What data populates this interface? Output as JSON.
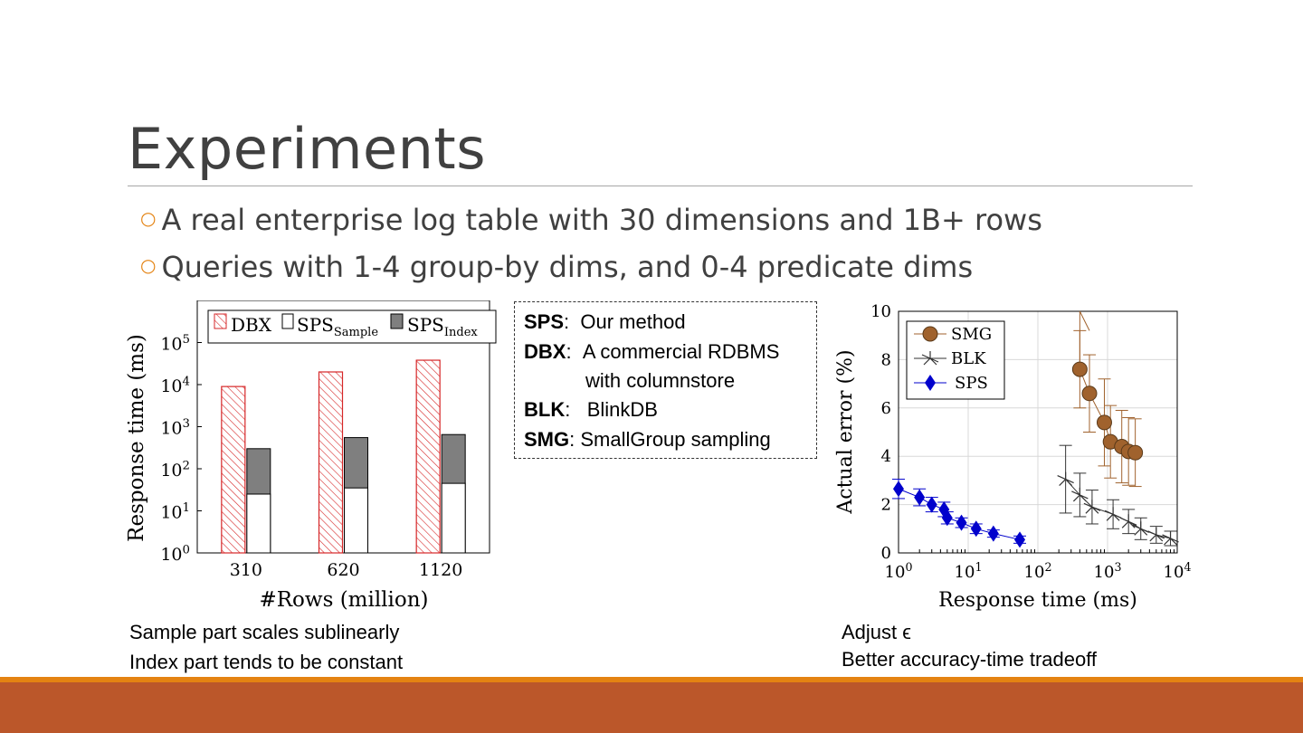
{
  "slide": {
    "title": "Experiments",
    "bullets": [
      "A real enterprise log table with 30 dimensions and 1B+ rows",
      "Queries with 1-4 group-by dims, and 0-4 predicate dims"
    ]
  },
  "legend_box": {
    "lines": [
      {
        "key": "SPS",
        "sep": ":",
        "text": "Our method"
      },
      {
        "key": "DBX",
        "sep": ":",
        "text": "A commercial RDBMS"
      },
      {
        "key": "",
        "sep": "",
        "text": "with columnstore"
      },
      {
        "key": "BLK",
        "sep": ":",
        "text": "BlinkDB"
      },
      {
        "key": "SMG",
        "sep": ":",
        "text": "SmallGroup sampling"
      }
    ]
  },
  "captions": {
    "left": [
      "Sample part scales sublinearly",
      "Index part tends to be constant"
    ],
    "right": [
      "Adjust ϵ",
      "Better accuracy-time tradeoff"
    ]
  },
  "colors": {
    "title": "#404040",
    "bullet_marker": "#e48312",
    "footer": "#bb572a",
    "footer_accent": "#e48312",
    "dbx_hatch": "#d62728",
    "sps_index": "#7f7f7f",
    "smg": "#a0622d",
    "blk": "#333333",
    "sps": "#0000cc"
  },
  "chart_data": [
    {
      "type": "bar",
      "xlabel": "#Rows (million)",
      "ylabel": "Response time (ms)",
      "yscale": "log",
      "ylim": [
        1,
        1000000
      ],
      "yticks": [
        "10^0",
        "10^1",
        "10^2",
        "10^3",
        "10^4",
        "10^5"
      ],
      "categories": [
        "310",
        "620",
        "1120"
      ],
      "series": [
        {
          "name": "DBX",
          "values": [
            9000,
            20000,
            38000
          ]
        },
        {
          "name": "SPS_Sample",
          "values": [
            25,
            35,
            45
          ]
        },
        {
          "name": "SPS_Index",
          "values": [
            300,
            550,
            650
          ]
        }
      ],
      "legend": {
        "position": "top",
        "labels": [
          {
            "base": "DBX",
            "sub": ""
          },
          {
            "base": "SPS",
            "sub": "Sample"
          },
          {
            "base": "SPS",
            "sub": "Index"
          }
        ]
      }
    },
    {
      "type": "line",
      "xlabel": "Response time (ms)",
      "ylabel": "Actual error (%)",
      "xscale": "log",
      "xlim": [
        1,
        10000
      ],
      "ylim": [
        0,
        10
      ],
      "xticks": [
        "10^0",
        "10^1",
        "10^2",
        "10^3",
        "10^4"
      ],
      "yticks": [
        "0",
        "2",
        "4",
        "6",
        "8",
        "10"
      ],
      "legend": {
        "position": "top-left"
      },
      "series": [
        {
          "name": "SMG",
          "x": [
            400,
            550,
            900,
            1100,
            1600,
            2000,
            2500
          ],
          "y": [
            7.6,
            6.6,
            5.4,
            4.6,
            4.4,
            4.2,
            4.15
          ],
          "err": [
            1.6,
            1.6,
            1.8,
            1.5,
            1.5,
            1.4,
            1.4
          ]
        },
        {
          "name": "BLK",
          "x": [
            250,
            400,
            600,
            1200,
            2000,
            3000,
            5000,
            8000
          ],
          "y": [
            3.05,
            2.4,
            1.9,
            1.6,
            1.3,
            1.0,
            0.75,
            0.6
          ],
          "err": [
            1.4,
            0.9,
            0.7,
            0.6,
            0.5,
            0.45,
            0.35,
            0.3
          ]
        },
        {
          "name": "SPS",
          "x": [
            1,
            2,
            3,
            4.5,
            5,
            8,
            13,
            23,
            55
          ],
          "y": [
            2.65,
            2.3,
            2.0,
            1.8,
            1.45,
            1.25,
            1.0,
            0.8,
            0.55
          ],
          "err": [
            0.4,
            0.35,
            0.3,
            0.3,
            0.25,
            0.2,
            0.2,
            0.15,
            0.15
          ]
        }
      ]
    }
  ]
}
